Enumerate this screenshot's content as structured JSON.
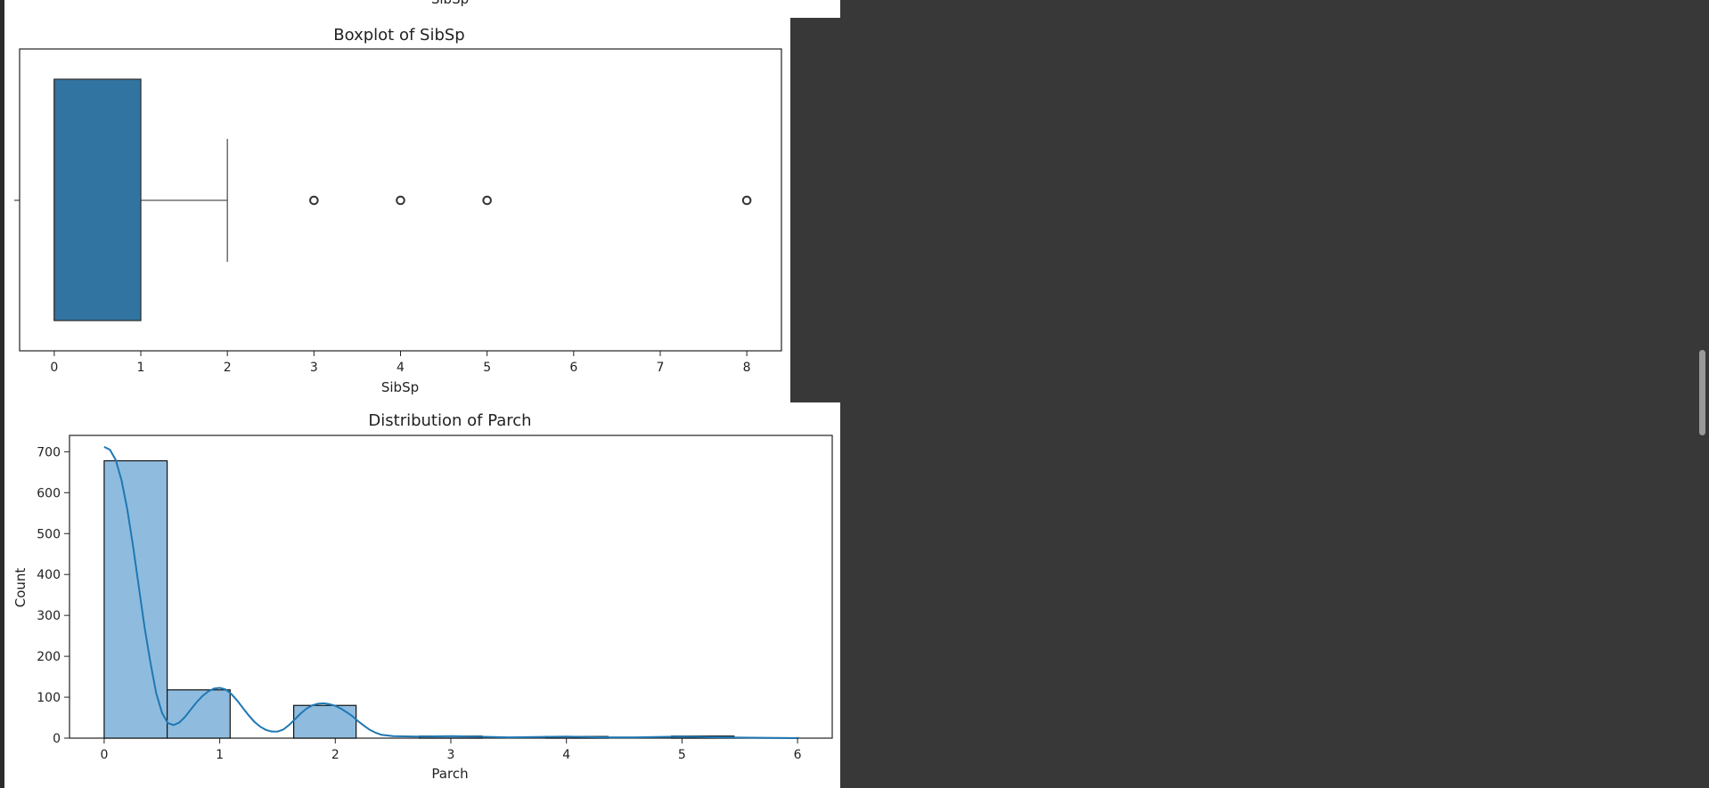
{
  "chart_data": [
    {
      "type": "box",
      "title": "Boxplot of SibSp",
      "xlabel": "SibSp",
      "ylabel": "",
      "xlim": [
        -0.4,
        8.4
      ],
      "ticks": [
        0,
        1,
        2,
        3,
        4,
        5,
        6,
        7,
        8
      ],
      "tick_labels": [
        "0",
        "1",
        "2",
        "3",
        "4",
        "5",
        "6",
        "7",
        "8"
      ],
      "box": {
        "min": 0,
        "q1": 0,
        "median": 0,
        "q3": 1,
        "whisker_low": 0,
        "whisker_high": 2
      },
      "outliers": [
        3,
        4,
        5,
        8
      ],
      "color": "#3274a1"
    },
    {
      "type": "histogram",
      "title": "Distribution of Parch",
      "xlabel": "Parch",
      "ylabel": "Count",
      "xlim": [
        -0.3,
        6.3
      ],
      "ylim": [
        0,
        740
      ],
      "x_ticks": [
        0,
        1,
        2,
        3,
        4,
        5,
        6
      ],
      "x_tick_labels": [
        "0",
        "1",
        "2",
        "3",
        "4",
        "5",
        "6"
      ],
      "y_ticks": [
        0,
        100,
        200,
        300,
        400,
        500,
        600,
        700
      ],
      "y_tick_labels": [
        "0",
        "100",
        "200",
        "300",
        "400",
        "500",
        "600",
        "700"
      ],
      "bins": [
        {
          "x0": 0.0,
          "x1": 0.545,
          "count": 678
        },
        {
          "x0": 0.545,
          "x1": 1.09,
          "count": 118
        },
        {
          "x0": 1.09,
          "x1": 1.64,
          "count": 0
        },
        {
          "x0": 1.64,
          "x1": 2.18,
          "count": 80
        },
        {
          "x0": 2.18,
          "x1": 2.73,
          "count": 0
        },
        {
          "x0": 2.73,
          "x1": 3.27,
          "count": 5
        },
        {
          "x0": 3.27,
          "x1": 3.82,
          "count": 0
        },
        {
          "x0": 3.82,
          "x1": 4.36,
          "count": 4
        },
        {
          "x0": 4.36,
          "x1": 4.91,
          "count": 0
        },
        {
          "x0": 4.91,
          "x1": 5.45,
          "count": 5
        },
        {
          "x0": 5.45,
          "x1": 6.0,
          "count": 1
        }
      ],
      "kde": [
        [
          0.0,
          712
        ],
        [
          0.05,
          705
        ],
        [
          0.1,
          680
        ],
        [
          0.15,
          630
        ],
        [
          0.2,
          560
        ],
        [
          0.25,
          470
        ],
        [
          0.3,
          370
        ],
        [
          0.35,
          270
        ],
        [
          0.4,
          185
        ],
        [
          0.45,
          110
        ],
        [
          0.5,
          62
        ],
        [
          0.55,
          37
        ],
        [
          0.6,
          32
        ],
        [
          0.65,
          38
        ],
        [
          0.7,
          52
        ],
        [
          0.75,
          70
        ],
        [
          0.8,
          88
        ],
        [
          0.85,
          103
        ],
        [
          0.9,
          114
        ],
        [
          0.95,
          121
        ],
        [
          1.0,
          123
        ],
        [
          1.05,
          119
        ],
        [
          1.1,
          108
        ],
        [
          1.15,
          92
        ],
        [
          1.2,
          74
        ],
        [
          1.25,
          56
        ],
        [
          1.3,
          40
        ],
        [
          1.35,
          28
        ],
        [
          1.4,
          20
        ],
        [
          1.45,
          16
        ],
        [
          1.5,
          16
        ],
        [
          1.55,
          21
        ],
        [
          1.6,
          32
        ],
        [
          1.65,
          46
        ],
        [
          1.7,
          60
        ],
        [
          1.75,
          72
        ],
        [
          1.8,
          80
        ],
        [
          1.85,
          84
        ],
        [
          1.9,
          85
        ],
        [
          1.95,
          83
        ],
        [
          2.0,
          79
        ],
        [
          2.05,
          72
        ],
        [
          2.1,
          63
        ],
        [
          2.15,
          53
        ],
        [
          2.2,
          41
        ],
        [
          2.25,
          30
        ],
        [
          2.3,
          20
        ],
        [
          2.35,
          13
        ],
        [
          2.4,
          8
        ],
        [
          2.5,
          5
        ],
        [
          2.7,
          4
        ],
        [
          3.0,
          5
        ],
        [
          3.2,
          4
        ],
        [
          3.5,
          2
        ],
        [
          3.8,
          3
        ],
        [
          4.0,
          4
        ],
        [
          4.3,
          2
        ],
        [
          4.6,
          2
        ],
        [
          5.0,
          4
        ],
        [
          5.3,
          2
        ],
        [
          5.6,
          1
        ],
        [
          6.0,
          0
        ]
      ],
      "bar_color": "#8fbcde",
      "line_color": "#1f77b4"
    }
  ],
  "top_cutoff_label": "SibSp"
}
